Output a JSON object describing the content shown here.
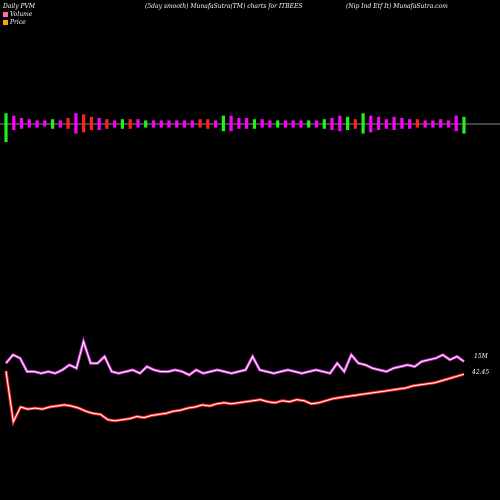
{
  "header": {
    "left": "Daily PVM",
    "mid": "(5day smooth) MunafaSutra(TM) charts for ITBEES",
    "right": "(Nip Ind Etf It) MunafaSutra.com"
  },
  "legend": {
    "volume_label": "Volume",
    "price_label": "Price",
    "volume_color": "#ff69b4",
    "price_color": "#ffa500"
  },
  "chart_data": {
    "type": "line",
    "title": "(5day smooth) MunafaSutra(TM) charts for ITBEES",
    "series_colors": {
      "volume_up": "#ff00ff",
      "volume_down": "#ff2222",
      "volume_flat": "#22ee22",
      "volume_line": "#cc33cc",
      "price_line": "#ff2222"
    },
    "bars": [
      {
        "up": 0.9,
        "down": 1.5,
        "c": "g"
      },
      {
        "up": 0.7,
        "down": 0.5,
        "c": "m"
      },
      {
        "up": 0.5,
        "down": 0.4,
        "c": "m"
      },
      {
        "up": 0.4,
        "down": 0.3,
        "c": "m"
      },
      {
        "up": 0.3,
        "down": 0.3,
        "c": "m"
      },
      {
        "up": 0.3,
        "down": 0.2,
        "c": "m"
      },
      {
        "up": 0.4,
        "down": 0.4,
        "c": "g"
      },
      {
        "up": 0.3,
        "down": 0.3,
        "c": "m"
      },
      {
        "up": 0.5,
        "down": 0.4,
        "c": "r"
      },
      {
        "up": 0.9,
        "down": 0.8,
        "c": "m"
      },
      {
        "up": 0.8,
        "down": 0.7,
        "c": "r"
      },
      {
        "up": 0.6,
        "down": 0.5,
        "c": "r"
      },
      {
        "up": 0.5,
        "down": 0.5,
        "c": "m"
      },
      {
        "up": 0.4,
        "down": 0.4,
        "c": "r"
      },
      {
        "up": 0.3,
        "down": 0.3,
        "c": "m"
      },
      {
        "up": 0.4,
        "down": 0.4,
        "c": "g"
      },
      {
        "up": 0.4,
        "down": 0.4,
        "c": "r"
      },
      {
        "up": 0.4,
        "down": 0.3,
        "c": "m"
      },
      {
        "up": 0.3,
        "down": 0.3,
        "c": "g"
      },
      {
        "up": 0.3,
        "down": 0.3,
        "c": "m"
      },
      {
        "up": 0.3,
        "down": 0.3,
        "c": "m"
      },
      {
        "up": 0.3,
        "down": 0.3,
        "c": "m"
      },
      {
        "up": 0.3,
        "down": 0.3,
        "c": "m"
      },
      {
        "up": 0.3,
        "down": 0.3,
        "c": "m"
      },
      {
        "up": 0.3,
        "down": 0.3,
        "c": "m"
      },
      {
        "up": 0.4,
        "down": 0.3,
        "c": "r"
      },
      {
        "up": 0.4,
        "down": 0.4,
        "c": "r"
      },
      {
        "up": 0.3,
        "down": 0.3,
        "c": "m"
      },
      {
        "up": 0.7,
        "down": 0.6,
        "c": "g"
      },
      {
        "up": 0.7,
        "down": 0.6,
        "c": "m"
      },
      {
        "up": 0.5,
        "down": 0.4,
        "c": "m"
      },
      {
        "up": 0.5,
        "down": 0.4,
        "c": "m"
      },
      {
        "up": 0.4,
        "down": 0.4,
        "c": "g"
      },
      {
        "up": 0.4,
        "down": 0.3,
        "c": "m"
      },
      {
        "up": 0.3,
        "down": 0.3,
        "c": "m"
      },
      {
        "up": 0.3,
        "down": 0.3,
        "c": "g"
      },
      {
        "up": 0.3,
        "down": 0.3,
        "c": "m"
      },
      {
        "up": 0.3,
        "down": 0.3,
        "c": "m"
      },
      {
        "up": 0.3,
        "down": 0.3,
        "c": "m"
      },
      {
        "up": 0.3,
        "down": 0.3,
        "c": "g"
      },
      {
        "up": 0.3,
        "down": 0.3,
        "c": "m"
      },
      {
        "up": 0.4,
        "down": 0.4,
        "c": "g"
      },
      {
        "up": 0.5,
        "down": 0.5,
        "c": "m"
      },
      {
        "up": 0.7,
        "down": 0.6,
        "c": "m"
      },
      {
        "up": 0.6,
        "down": 0.5,
        "c": "g"
      },
      {
        "up": 0.4,
        "down": 0.4,
        "c": "r"
      },
      {
        "up": 0.9,
        "down": 0.8,
        "c": "g"
      },
      {
        "up": 0.7,
        "down": 0.7,
        "c": "m"
      },
      {
        "up": 0.6,
        "down": 0.5,
        "c": "m"
      },
      {
        "up": 0.4,
        "down": 0.4,
        "c": "m"
      },
      {
        "up": 0.6,
        "down": 0.5,
        "c": "m"
      },
      {
        "up": 0.5,
        "down": 0.4,
        "c": "m"
      },
      {
        "up": 0.4,
        "down": 0.4,
        "c": "m"
      },
      {
        "up": 0.4,
        "down": 0.3,
        "c": "r"
      },
      {
        "up": 0.3,
        "down": 0.3,
        "c": "m"
      },
      {
        "up": 0.3,
        "down": 0.3,
        "c": "m"
      },
      {
        "up": 0.4,
        "down": 0.3,
        "c": "m"
      },
      {
        "up": 0.3,
        "down": 0.3,
        "c": "m"
      },
      {
        "up": 0.7,
        "down": 0.6,
        "c": "m"
      },
      {
        "up": 0.6,
        "down": 0.8,
        "c": "g"
      }
    ],
    "volume_line": [
      75,
      80,
      78,
      70,
      70,
      69,
      70,
      69,
      71,
      74,
      72,
      88,
      75,
      75,
      79,
      70,
      69,
      70,
      71,
      69,
      73,
      71,
      70,
      70,
      71,
      70,
      68,
      71,
      69,
      70,
      71,
      70,
      69,
      70,
      71,
      79,
      71,
      70,
      69,
      70,
      71,
      70,
      69,
      70,
      71,
      70,
      69,
      75,
      70,
      80,
      75,
      74,
      72,
      71,
      70,
      72,
      73,
      74,
      73,
      76,
      77,
      78,
      80,
      77,
      79,
      76
    ],
    "price_line": [
      71,
      23,
      37,
      35,
      36,
      35,
      37,
      38,
      39,
      38,
      36,
      33,
      31,
      30,
      25,
      24,
      25,
      26,
      28,
      27,
      29,
      30,
      31,
      33,
      34,
      36,
      37,
      39,
      38,
      40,
      41,
      40,
      41,
      42,
      43,
      44,
      42,
      41,
      43,
      42,
      44,
      43,
      40,
      41,
      43,
      45,
      46,
      47,
      48,
      49,
      50,
      51,
      52,
      53,
      54,
      55,
      57,
      58,
      59,
      60,
      62,
      64,
      66,
      68
    ],
    "labels": {
      "volume_end": "15M",
      "price_end": "42.45"
    }
  }
}
